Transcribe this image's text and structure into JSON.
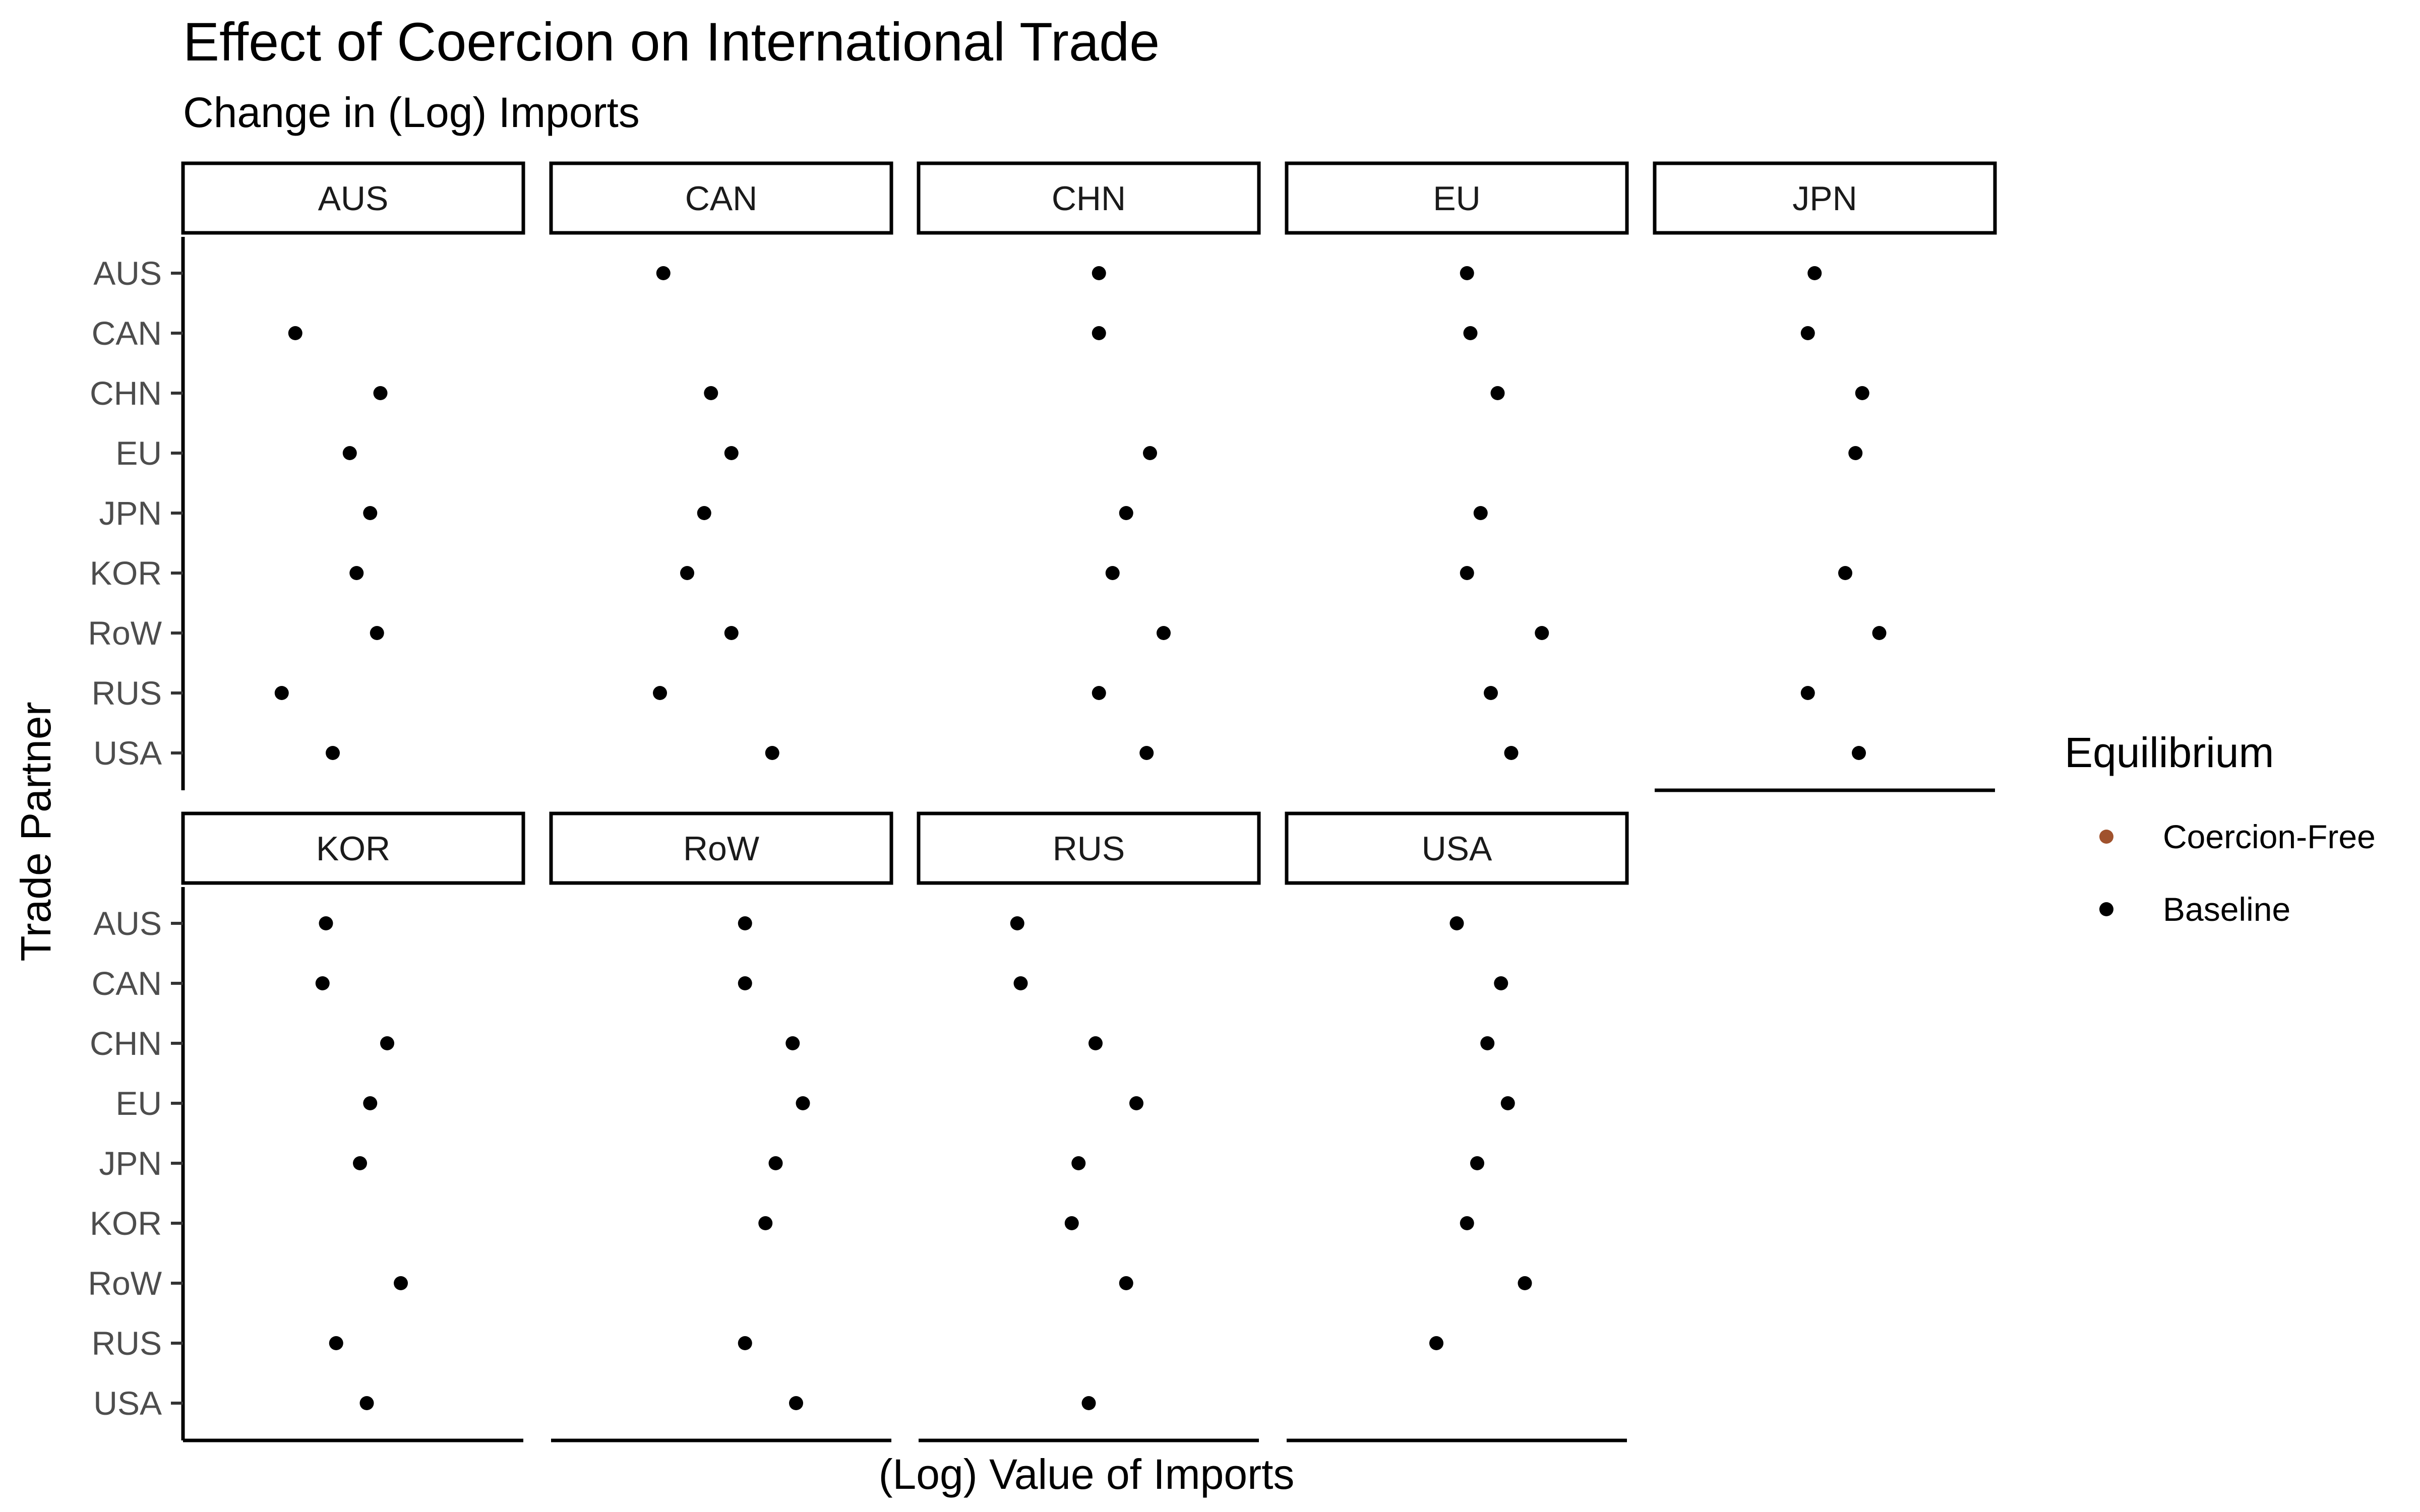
{
  "chart_data": {
    "type": "scatter",
    "title": "Effect of Coercion on International Trade",
    "subtitle": "Change in (Log) Imports",
    "xlabel": "(Log) Value of Imports",
    "ylabel": "Trade Partner",
    "categories": [
      "AUS",
      "CAN",
      "CHN",
      "EU",
      "JPN",
      "KOR",
      "RoW",
      "RUS",
      "USA"
    ],
    "xlim": [
      0,
      1
    ],
    "grid": false,
    "legend": {
      "title": "Equilibrium",
      "position": "right",
      "items": [
        {
          "label": "Coercion-Free",
          "color": "#a0522d"
        },
        {
          "label": "Baseline",
          "color": "#000000"
        }
      ]
    },
    "panels": [
      {
        "label": "AUS",
        "series": [
          {
            "name": "Baseline",
            "values": {
              "CAN": 0.33,
              "CHN": 0.58,
              "EU": 0.49,
              "JPN": 0.55,
              "KOR": 0.51,
              "RoW": 0.57,
              "RUS": 0.29,
              "USA": 0.44
            }
          }
        ]
      },
      {
        "label": "CAN",
        "series": [
          {
            "name": "Baseline",
            "values": {
              "AUS": 0.33,
              "CHN": 0.47,
              "EU": 0.53,
              "JPN": 0.45,
              "KOR": 0.4,
              "RoW": 0.53,
              "RUS": 0.32,
              "USA": 0.65
            }
          }
        ]
      },
      {
        "label": "CHN",
        "series": [
          {
            "name": "Baseline",
            "values": {
              "AUS": 0.53,
              "CAN": 0.53,
              "EU": 0.68,
              "JPN": 0.61,
              "KOR": 0.57,
              "RoW": 0.72,
              "RUS": 0.53,
              "USA": 0.67
            }
          }
        ]
      },
      {
        "label": "EU",
        "series": [
          {
            "name": "Baseline",
            "values": {
              "AUS": 0.53,
              "CAN": 0.54,
              "CHN": 0.62,
              "JPN": 0.57,
              "KOR": 0.53,
              "RoW": 0.75,
              "RUS": 0.6,
              "USA": 0.66
            }
          }
        ]
      },
      {
        "label": "JPN",
        "series": [
          {
            "name": "Baseline",
            "values": {
              "AUS": 0.47,
              "CAN": 0.45,
              "CHN": 0.61,
              "EU": 0.59,
              "KOR": 0.56,
              "RoW": 0.66,
              "RUS": 0.45,
              "USA": 0.6
            }
          }
        ]
      },
      {
        "label": "KOR",
        "series": [
          {
            "name": "Baseline",
            "values": {
              "AUS": 0.42,
              "CAN": 0.41,
              "CHN": 0.6,
              "EU": 0.55,
              "JPN": 0.52,
              "RoW": 0.64,
              "RUS": 0.45,
              "USA": 0.54
            }
          }
        ]
      },
      {
        "label": "RoW",
        "series": [
          {
            "name": "Baseline",
            "values": {
              "AUS": 0.57,
              "CAN": 0.57,
              "CHN": 0.71,
              "EU": 0.74,
              "JPN": 0.66,
              "KOR": 0.63,
              "RUS": 0.57,
              "USA": 0.72
            }
          }
        ]
      },
      {
        "label": "RUS",
        "series": [
          {
            "name": "Baseline",
            "values": {
              "AUS": 0.29,
              "CAN": 0.3,
              "CHN": 0.52,
              "EU": 0.64,
              "JPN": 0.47,
              "KOR": 0.45,
              "RoW": 0.61,
              "USA": 0.5
            }
          }
        ]
      },
      {
        "label": "USA",
        "series": [
          {
            "name": "Baseline",
            "values": {
              "AUS": 0.5,
              "CAN": 0.63,
              "CHN": 0.59,
              "EU": 0.65,
              "JPN": 0.56,
              "KOR": 0.53,
              "RoW": 0.7,
              "RUS": 0.44
            }
          }
        ]
      }
    ]
  }
}
